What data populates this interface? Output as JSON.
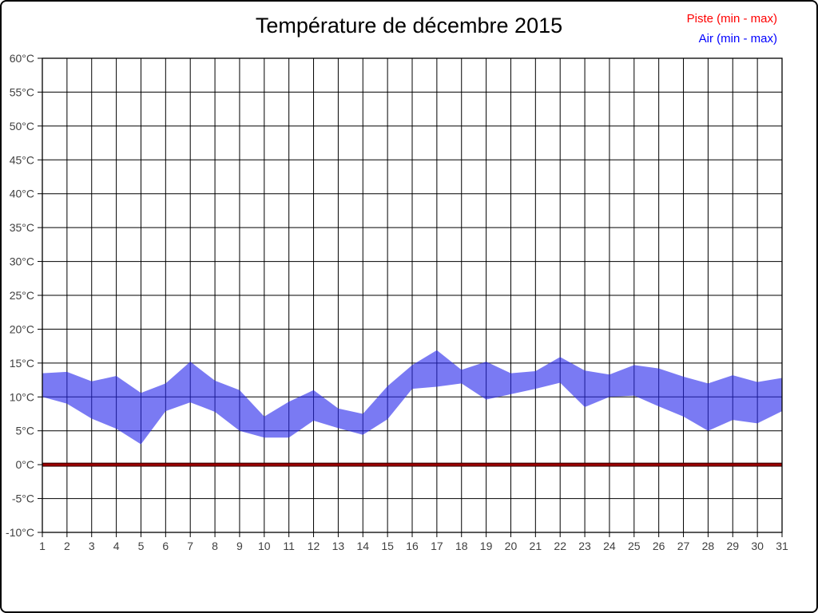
{
  "page": {
    "background": "#ffffff",
    "border_color": "#000000"
  },
  "colors": {
    "grid": "#000000",
    "frame": "#000000",
    "axis_text": "#404040",
    "title_text": "#000000",
    "air_band_fill": "rgba(40,40,235,0.62)",
    "piste_band_fill": "#990000",
    "piste_band_stroke": "#2a0000",
    "legend_piste": "#ff0000",
    "legend_air": "#0000ff"
  },
  "chart_data": {
    "type": "area",
    "subtype": "min-max-range-band",
    "title": "Température de décembre 2015",
    "xlabel": "",
    "ylabel": "",
    "grid": true,
    "legend_position": "top-right",
    "legend": [
      {
        "label": "Piste (min - max)",
        "color": "#ff0000"
      },
      {
        "label": "Air (min - max)",
        "color": "#0000ff"
      }
    ],
    "x": [
      1,
      2,
      3,
      4,
      5,
      6,
      7,
      8,
      9,
      10,
      11,
      12,
      13,
      14,
      15,
      16,
      17,
      18,
      19,
      20,
      21,
      22,
      23,
      24,
      25,
      26,
      27,
      28,
      29,
      30,
      31
    ],
    "x_tick_labels": [
      "1",
      "2",
      "3",
      "4",
      "5",
      "6",
      "7",
      "8",
      "9",
      "10",
      "11",
      "12",
      "13",
      "14",
      "15",
      "16",
      "17",
      "18",
      "19",
      "20",
      "21",
      "22",
      "23",
      "24",
      "25",
      "26",
      "27",
      "28",
      "29",
      "30",
      "31"
    ],
    "ylim": [
      -10,
      60
    ],
    "y_ticks": [
      -10,
      -5,
      0,
      5,
      10,
      15,
      20,
      25,
      30,
      35,
      40,
      45,
      50,
      55,
      60
    ],
    "y_tick_labels": [
      "-10°C",
      "-5°C",
      "0°C",
      "5°C",
      "10°C",
      "15°C",
      "20°C",
      "25°C",
      "30°C",
      "35°C",
      "40°C",
      "45°C",
      "50°C",
      "55°C",
      "60°C"
    ],
    "series": [
      {
        "id": "piste",
        "name": "Piste (min - max)",
        "fill": "#990000",
        "stroke": "#2a0000",
        "min": [
          0,
          0,
          0,
          0,
          0,
          0,
          0,
          0,
          0,
          0,
          0,
          0,
          0,
          0,
          0,
          0,
          0,
          0,
          0,
          0,
          0,
          0,
          0,
          0,
          0,
          0,
          0,
          0,
          0,
          0,
          0
        ],
        "max": [
          0,
          0,
          0,
          0,
          0,
          0,
          0,
          0,
          0,
          0,
          0,
          0,
          0,
          0,
          0,
          0,
          0,
          0,
          0,
          0,
          0,
          0,
          0,
          0,
          0,
          0,
          0,
          0,
          0,
          0,
          0
        ]
      },
      {
        "id": "air",
        "name": "Air (min - max)",
        "fill": "rgba(40,40,235,0.62)",
        "min": [
          10,
          9,
          6.8,
          5.3,
          3,
          7.9,
          9.2,
          7.8,
          5,
          4,
          4,
          6.5,
          5.4,
          4.4,
          6.7,
          11.2,
          11.5,
          12,
          9.6,
          10.4,
          11.2,
          12.1,
          8.5,
          10,
          10.2,
          8.6,
          7.1,
          5,
          6.6,
          6.1,
          7.9
        ],
        "max": [
          13.5,
          13.7,
          12.3,
          13.1,
          10.6,
          12,
          15.2,
          12.4,
          11,
          7.1,
          9.3,
          11,
          8.3,
          7.5,
          11.6,
          14.7,
          16.9,
          14,
          15.2,
          13.5,
          13.8,
          15.9,
          13.9,
          13.3,
          14.7,
          14.2,
          13,
          12,
          13.2,
          12.2,
          12.8
        ]
      }
    ]
  }
}
